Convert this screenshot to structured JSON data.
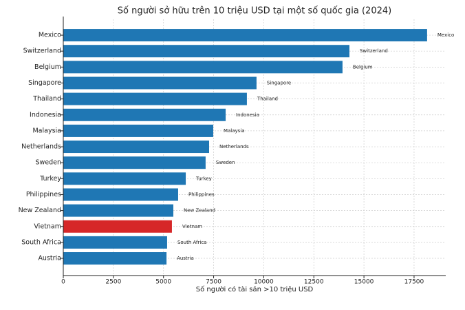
{
  "chart_data": {
    "type": "barh",
    "title": "Số người sở hữu trên 10 triệu USD tại một số quốc gia (2024)",
    "x_label": "Số người có tài sản >10 triệu USD",
    "categories": [
      "Mexico",
      "Switzerland",
      "Belgium",
      "Singapore",
      "Thailand",
      "Indonesia",
      "Malaysia",
      "Netherlands",
      "Sweden",
      "Turkey",
      "Philippines",
      "New Zealand",
      "Vietnam",
      "South Africa",
      "Austria"
    ],
    "values": [
      18150,
      14275,
      13930,
      9640,
      9160,
      8100,
      7480,
      7275,
      7100,
      6110,
      5730,
      5490,
      5420,
      5180,
      5150
    ],
    "colors": [
      "#1f77b4",
      "#1f77b4",
      "#1f77b4",
      "#1f77b4",
      "#1f77b4",
      "#1f77b4",
      "#1f77b4",
      "#1f77b4",
      "#1f77b4",
      "#1f77b4",
      "#1f77b4",
      "#1f77b4",
      "#d62728",
      "#1f77b4",
      "#1f77b4"
    ],
    "xlim": [
      0,
      19080
    ],
    "xticks": [
      0,
      2500,
      5000,
      7500,
      10000,
      12500,
      15000,
      17500
    ],
    "grid": true
  }
}
